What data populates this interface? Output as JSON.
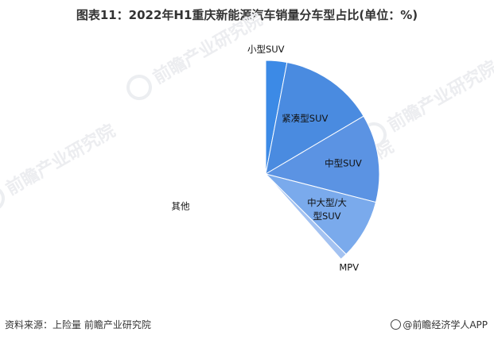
{
  "title": "图表11：2022年H1重庆新能源汽车销量分车型占比(单位：%)",
  "footer": {
    "source": "资料来源：上险量 前瞻产业研究院",
    "brand": "@前瞻经济学人APP"
  },
  "watermark": {
    "text": "前瞻产业研究院",
    "icon": "qianzhan-logo-icon"
  },
  "colors": {
    "small_suv": "#3c8ae6",
    "compact_suv": "#4a8be0",
    "mid_suv": "#5b93e3",
    "large_suv": "#7aaaec",
    "mpv": "#a3c2f1",
    "other": "#ffffff"
  },
  "chart_data": {
    "type": "pie",
    "title": "图表11：2022年H1重庆新能源汽车销量分车型占比(单位：%)",
    "start_angle_deg": 0,
    "direction": "clockwise",
    "slices": [
      {
        "label": "小型SUV",
        "value": 3.0
      },
      {
        "label": "紧凑型SUV",
        "value": 13.5
      },
      {
        "label": "中型SUV",
        "value": 12.5
      },
      {
        "label": "中大型/大型SUV",
        "value": 8.5
      },
      {
        "label": "MPV",
        "value": 1.0
      },
      {
        "label": "其他",
        "value": 61.5
      }
    ]
  }
}
